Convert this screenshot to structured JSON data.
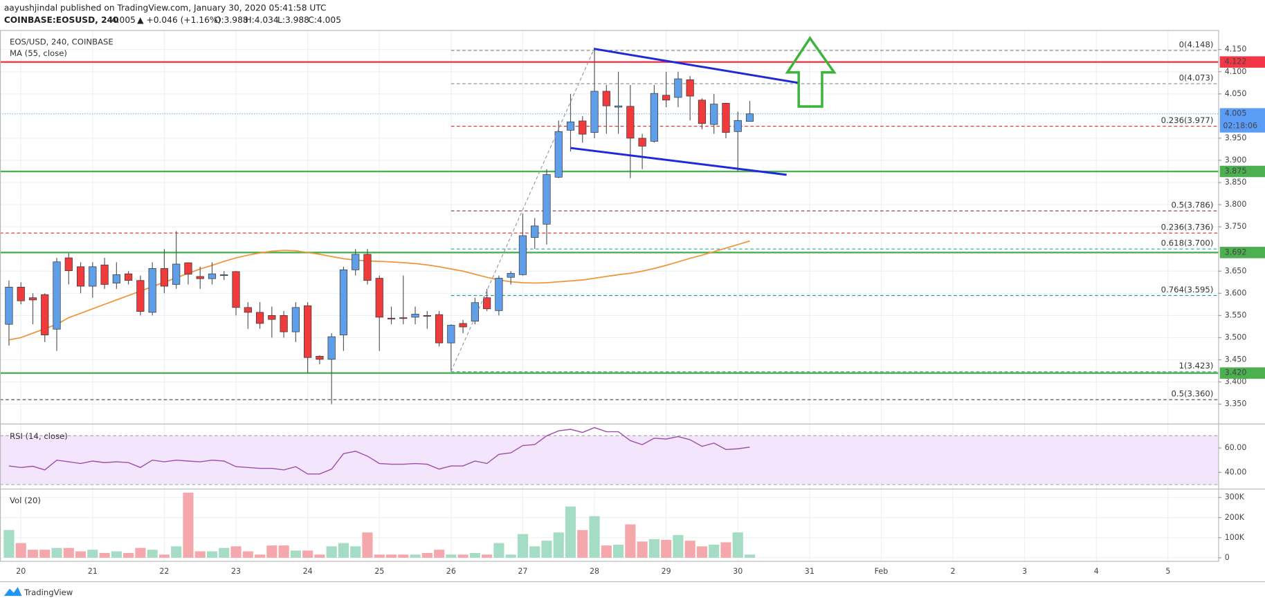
{
  "header": {
    "byline": "aayushjindal published on TradingView.com, January 30, 2020 05:41:58 UTC",
    "symbol": "COINBASE:EOSUSD, 240",
    "price": "4.005",
    "change": "▲ +0.046 (+1.16%)",
    "open": "O:3.988",
    "high": "H:4.034",
    "low": "L:3.988",
    "close": "C:4.005"
  },
  "footer": {
    "brand": "TradingView"
  },
  "chart_data": [
    {
      "type": "candlestick",
      "title": "EOS/USD, 240, COINBASE",
      "x": [
        "2020-01-19T20:00",
        "2020-01-20T00:00",
        "2020-01-20T04:00",
        "2020-01-20T08:00",
        "2020-01-20T12:00",
        "2020-01-20T16:00",
        "2020-01-20T20:00",
        "2020-01-21T00:00",
        "2020-01-21T04:00",
        "2020-01-21T08:00",
        "2020-01-21T12:00",
        "2020-01-21T16:00",
        "2020-01-21T20:00",
        "2020-01-22T00:00",
        "2020-01-22T04:00",
        "2020-01-22T08:00",
        "2020-01-22T12:00",
        "2020-01-22T16:00",
        "2020-01-22T20:00",
        "2020-01-23T00:00",
        "2020-01-23T04:00",
        "2020-01-23T08:00",
        "2020-01-23T12:00",
        "2020-01-23T16:00",
        "2020-01-23T20:00",
        "2020-01-24T00:00",
        "2020-01-24T04:00",
        "2020-01-24T08:00",
        "2020-01-24T12:00",
        "2020-01-24T16:00",
        "2020-01-24T20:00",
        "2020-01-25T00:00",
        "2020-01-25T04:00",
        "2020-01-25T08:00",
        "2020-01-25T12:00",
        "2020-01-25T16:00",
        "2020-01-25T20:00",
        "2020-01-26T00:00",
        "2020-01-26T04:00",
        "2020-01-26T08:00",
        "2020-01-26T12:00",
        "2020-01-26T16:00",
        "2020-01-26T20:00",
        "2020-01-27T00:00",
        "2020-01-27T04:00",
        "2020-01-27T08:00",
        "2020-01-27T12:00",
        "2020-01-27T16:00",
        "2020-01-27T20:00",
        "2020-01-28T00:00",
        "2020-01-28T04:00",
        "2020-01-28T08:00",
        "2020-01-28T12:00",
        "2020-01-28T16:00",
        "2020-01-28T20:00",
        "2020-01-29T00:00",
        "2020-01-29T04:00",
        "2020-01-29T08:00",
        "2020-01-29T12:00",
        "2020-01-29T16:00",
        "2020-01-29T20:00",
        "2020-01-30T00:00",
        "2020-01-30T04:00"
      ],
      "open": [
        3.53,
        3.614,
        3.59,
        3.597,
        3.519,
        3.68,
        3.66,
        3.616,
        3.664,
        3.623,
        3.644,
        3.629,
        3.557,
        3.656,
        3.62,
        3.669,
        3.638,
        3.633,
        3.64,
        3.649,
        3.568,
        3.557,
        3.55,
        3.55,
        3.513,
        3.572,
        3.458,
        3.451,
        3.506,
        3.653,
        3.688,
        3.634,
        3.544,
        3.545,
        3.546,
        3.55,
        3.552,
        3.488,
        3.532,
        3.537,
        3.59,
        3.561,
        3.636,
        3.642,
        3.726,
        3.756,
        3.862,
        3.968,
        3.989,
        3.963,
        4.056,
        4.02,
        4.022,
        3.95,
        3.943,
        4.047,
        4.042,
        4.082,
        4.036,
        3.981,
        4.029,
        3.965,
        3.988
      ],
      "high": [
        3.629,
        3.625,
        3.6,
        3.6,
        3.68,
        3.69,
        3.67,
        3.67,
        3.68,
        3.67,
        3.65,
        3.64,
        3.67,
        3.7,
        3.74,
        3.67,
        3.66,
        3.67,
        3.65,
        3.65,
        3.58,
        3.58,
        3.57,
        3.56,
        3.58,
        3.58,
        3.46,
        3.51,
        3.66,
        3.7,
        3.7,
        3.64,
        3.57,
        3.64,
        3.57,
        3.56,
        3.56,
        3.53,
        3.54,
        3.59,
        3.61,
        3.64,
        3.65,
        3.78,
        3.77,
        3.88,
        3.99,
        4.05,
        4,
        4.148,
        4.07,
        4.1,
        4.07,
        3.96,
        4.07,
        4.1,
        4.1,
        4.09,
        4.04,
        4.05,
        4.03,
        4.01,
        4.034
      ],
      "low": [
        3.482,
        3.575,
        3.53,
        3.49,
        3.47,
        3.62,
        3.6,
        3.59,
        3.61,
        3.61,
        3.62,
        3.55,
        3.55,
        3.6,
        3.61,
        3.62,
        3.61,
        3.62,
        3.63,
        3.55,
        3.52,
        3.52,
        3.5,
        3.5,
        3.49,
        3.42,
        3.44,
        3.35,
        3.47,
        3.64,
        3.62,
        3.47,
        3.53,
        3.53,
        3.53,
        3.52,
        3.48,
        3.423,
        3.51,
        3.53,
        3.56,
        3.55,
        3.62,
        3.64,
        3.7,
        3.71,
        3.86,
        3.92,
        3.94,
        3.95,
        3.96,
        3.96,
        3.86,
        3.88,
        3.94,
        4.02,
        4.02,
        3.99,
        3.97,
        3.96,
        3.95,
        3.875,
        3.988
      ],
      "close": [
        3.614,
        3.583,
        3.585,
        3.506,
        3.671,
        3.651,
        3.616,
        3.66,
        3.62,
        3.642,
        3.629,
        3.559,
        3.656,
        3.616,
        3.666,
        3.643,
        3.633,
        3.644,
        3.642,
        3.568,
        3.557,
        3.532,
        3.541,
        3.513,
        3.568,
        3.455,
        3.451,
        3.502,
        3.653,
        3.688,
        3.629,
        3.546,
        3.542,
        3.543,
        3.553,
        3.549,
        3.488,
        3.528,
        3.524,
        3.579,
        3.565,
        3.634,
        3.645,
        3.73,
        3.752,
        3.868,
        3.965,
        3.987,
        3.959,
        4.056,
        4.023,
        4.023,
        3.95,
        3.932,
        4.051,
        4.036,
        4.084,
        4.045,
        3.983,
        4.027,
        3.963,
        3.99,
        4.005
      ],
      "up_color": "#5f9ee8",
      "down_color": "#ef3b3b",
      "ma": {
        "name": "MA (55, close)",
        "color": "#f0953a",
        "values": [
          3.495,
          3.5,
          3.51,
          3.52,
          3.53,
          3.545,
          3.555,
          3.565,
          3.575,
          3.585,
          3.595,
          3.605,
          3.615,
          3.625,
          3.635,
          3.645,
          3.655,
          3.663,
          3.672,
          3.68,
          3.686,
          3.691,
          3.695,
          3.697,
          3.696,
          3.692,
          3.688,
          3.683,
          3.678,
          3.675,
          3.673,
          3.672,
          3.671,
          3.669,
          3.667,
          3.664,
          3.66,
          3.655,
          3.65,
          3.643,
          3.636,
          3.63,
          3.626,
          3.624,
          3.623,
          3.624,
          3.626,
          3.628,
          3.63,
          3.634,
          3.638,
          3.642,
          3.645,
          3.65,
          3.656,
          3.663,
          3.671,
          3.679,
          3.686,
          3.694,
          3.702,
          3.71,
          3.718
        ]
      },
      "xlim": [
        "2020-01-19T17:00",
        "2020-02-05T16:48"
      ],
      "xticks": [
        {
          "value": "2020-01-20T00:00",
          "label": "20"
        },
        {
          "value": "2020-01-21T00:00",
          "label": "21"
        },
        {
          "value": "2020-01-22T00:00",
          "label": "22"
        },
        {
          "value": "2020-01-23T00:00",
          "label": "23"
        },
        {
          "value": "2020-01-24T00:00",
          "label": "24"
        },
        {
          "value": "2020-01-25T00:00",
          "label": "25"
        },
        {
          "value": "2020-01-26T00:00",
          "label": "26"
        },
        {
          "value": "2020-01-27T00:00",
          "label": "27"
        },
        {
          "value": "2020-01-28T00:00",
          "label": "28"
        },
        {
          "value": "2020-01-29T00:00",
          "label": "29"
        },
        {
          "value": "2020-01-30T00:00",
          "label": "30"
        },
        {
          "value": "2020-01-31T00:00",
          "label": "31"
        },
        {
          "value": "2020-02-01T00:00",
          "label": "Feb"
        },
        {
          "value": "2020-02-02T00:00",
          "label": "2"
        },
        {
          "value": "2020-02-03T00:00",
          "label": "3"
        },
        {
          "value": "2020-02-04T00:00",
          "label": "4"
        },
        {
          "value": "2020-02-05T00:00",
          "label": "5"
        }
      ],
      "ylim": [
        3.306,
        4.194
      ],
      "yticks": [
        {
          "value": 4.15,
          "label": "4.150"
        },
        {
          "value": 4.1,
          "label": "4.100"
        },
        {
          "value": 4.05,
          "label": "4.050"
        },
        {
          "value": 3.95,
          "label": "3.950"
        },
        {
          "value": 3.9,
          "label": "3.900"
        },
        {
          "value": 3.85,
          "label": "3.850"
        },
        {
          "value": 3.8,
          "label": "3.800"
        },
        {
          "value": 3.75,
          "label": "3.750"
        },
        {
          "value": 3.65,
          "label": "3.650"
        },
        {
          "value": 3.6,
          "label": "3.600"
        },
        {
          "value": 3.55,
          "label": "3.550"
        },
        {
          "value": 3.5,
          "label": "3.500"
        },
        {
          "value": 3.45,
          "label": "3.450"
        },
        {
          "value": 3.4,
          "label": "3.400"
        },
        {
          "value": 3.35,
          "label": "3.350"
        }
      ],
      "grid": true,
      "levels": [
        {
          "value": 4.122,
          "label": "4.122",
          "color": "#f23645"
        },
        {
          "value": 3.875,
          "label": "3.875",
          "color": "#4caf50"
        },
        {
          "value": 3.692,
          "label": "3.692",
          "color": "#4caf50"
        },
        {
          "value": 3.42,
          "label": "3.420",
          "color": "#4caf50"
        }
      ],
      "last_price": {
        "value": 4.005,
        "label": "4.005",
        "countdown": "02:18:06",
        "color": "#5b9cf6"
      },
      "fib": [
        {
          "value": 4.148,
          "label": "0(4.148)",
          "color": "#8a8a8a",
          "start": "2020-01-26T00:00"
        },
        {
          "value": 4.073,
          "label": "0(4.073)",
          "color": "#8a8a8a",
          "start": "2020-01-26T00:00"
        },
        {
          "value": 3.977,
          "label": "0.236(3.977)",
          "color": "#e53935",
          "start": "2020-01-26T00:00"
        },
        {
          "value": 3.786,
          "label": "0.5(3.786)",
          "color": "#6d3b4a",
          "start": "2020-01-26T00:00"
        },
        {
          "value": 3.736,
          "label": "0.236(3.736)",
          "color": "#e53935"
        },
        {
          "value": 3.7,
          "label": "0.618(3.700)",
          "color": "#26a69a",
          "start": "2020-01-26T00:00"
        },
        {
          "value": 3.595,
          "label": "0.764(3.595)",
          "color": "#2196a3",
          "start": "2020-01-26T00:00"
        },
        {
          "value": 3.423,
          "label": "1(3.423)",
          "color": "#5ba3d0",
          "start": "2020-01-26T00:00"
        },
        {
          "value": 3.36,
          "label": "0.5(3.360)",
          "color": "#444"
        }
      ]
    },
    {
      "type": "line",
      "title": "RSI (14, close)",
      "color": "#9c4fa8",
      "values": [
        45.3,
        44,
        45,
        42,
        50,
        48.7,
        47.3,
        49.3,
        48,
        48.7,
        48,
        44,
        50,
        48.7,
        50,
        49.3,
        48.7,
        50,
        49.3,
        44.7,
        44,
        43.3,
        43.3,
        42,
        44.7,
        38.7,
        38.7,
        42.7,
        55.3,
        57.3,
        53.3,
        47.3,
        46.7,
        46.7,
        47.3,
        46.7,
        42.7,
        45.3,
        45.3,
        49.3,
        47.3,
        54.7,
        56,
        62,
        62.7,
        70,
        74,
        75.3,
        72.7,
        76.7,
        73.3,
        73.3,
        66,
        62.7,
        68,
        67.3,
        69.3,
        66.7,
        61.3,
        64,
        58.7,
        59.3,
        60.7
      ],
      "band": [
        30,
        70
      ],
      "ylim": [
        26.7,
        79.3
      ],
      "yticks": [
        {
          "value": 60,
          "label": "60.00"
        },
        {
          "value": 40,
          "label": "40.00"
        }
      ]
    },
    {
      "type": "bar",
      "title": "Vol (20)",
      "up_color": "#a5dcc5",
      "down_color": "#f5a8ab",
      "values": [
        138000,
        73000,
        40000,
        40000,
        49000,
        49000,
        32000,
        40000,
        24000,
        32000,
        24000,
        49000,
        40000,
        16000,
        57000,
        324000,
        32000,
        32000,
        49000,
        57000,
        32000,
        16000,
        61000,
        61000,
        36000,
        36000,
        16000,
        57000,
        73000,
        57000,
        126000,
        16000,
        16000,
        16000,
        16000,
        24000,
        40000,
        16000,
        16000,
        24000,
        16000,
        73000,
        16000,
        118000,
        57000,
        85000,
        126000,
        255000,
        138000,
        207000,
        61000,
        65000,
        166000,
        81000,
        93000,
        89000,
        113000,
        85000,
        57000,
        65000,
        77000,
        126000,
        16000
      ],
      "ylim": [
        -16000,
        336000
      ],
      "yticks": [
        {
          "value": 300000,
          "label": "300K"
        },
        {
          "value": 200000,
          "label": "200K"
        },
        {
          "value": 100000,
          "label": "100K"
        },
        {
          "value": 0,
          "label": "0"
        }
      ]
    }
  ]
}
